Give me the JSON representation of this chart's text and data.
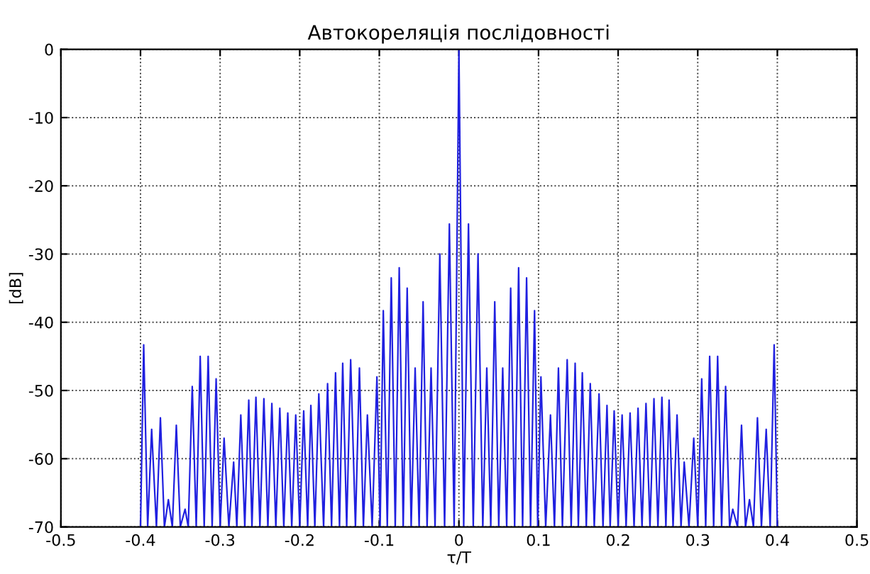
{
  "chart_data": {
    "type": "line",
    "title": "Автокореляція послідовності",
    "xlabel": "τ/T",
    "ylabel": "[dB]",
    "xlim": [
      -0.5,
      0.5
    ],
    "xticks": [
      -0.5,
      -0.4,
      -0.3,
      -0.2,
      -0.1,
      0,
      0.1,
      0.2,
      0.3,
      0.4,
      0.5
    ],
    "ylim": [
      -70,
      0
    ],
    "yticks": [
      -70,
      -60,
      -50,
      -40,
      -30,
      -20,
      -10,
      0
    ],
    "grid": true,
    "marker": "none",
    "line_style": "solid",
    "series": [
      {
        "color": "#2020e0",
        "x": [
          -0.4,
          -0.396,
          -0.391,
          -0.386,
          -0.38,
          -0.375,
          -0.37,
          -0.365,
          -0.36,
          -0.355,
          -0.35,
          -0.344,
          -0.34,
          -0.335,
          -0.33,
          -0.325,
          -0.32,
          -0.315,
          -0.31,
          -0.305,
          -0.3,
          -0.295,
          -0.289,
          -0.283,
          -0.279,
          -0.274,
          -0.269,
          -0.264,
          -0.26,
          -0.255,
          -0.25,
          -0.245,
          -0.24,
          -0.235,
          -0.23,
          -0.225,
          -0.22,
          -0.215,
          -0.21,
          -0.205,
          -0.2,
          -0.195,
          -0.19,
          -0.186,
          -0.181,
          -0.176,
          -0.17,
          -0.165,
          -0.16,
          -0.155,
          -0.15,
          -0.146,
          -0.141,
          -0.136,
          -0.13,
          -0.125,
          -0.12,
          -0.115,
          -0.109,
          -0.103,
          -0.099,
          -0.095,
          -0.09,
          -0.085,
          -0.08,
          -0.075,
          -0.07,
          -0.065,
          -0.06,
          -0.055,
          -0.05,
          -0.045,
          -0.04,
          -0.035,
          -0.03,
          -0.024,
          -0.018,
          -0.012,
          -0.006,
          0,
          0.006,
          0.012,
          0.018,
          0.024,
          0.03,
          0.035,
          0.04,
          0.045,
          0.05,
          0.055,
          0.06,
          0.065,
          0.07,
          0.075,
          0.08,
          0.085,
          0.09,
          0.095,
          0.099,
          0.103,
          0.109,
          0.115,
          0.12,
          0.125,
          0.13,
          0.136,
          0.141,
          0.146,
          0.15,
          0.155,
          0.16,
          0.165,
          0.17,
          0.176,
          0.181,
          0.186,
          0.19,
          0.195,
          0.2,
          0.205,
          0.21,
          0.215,
          0.22,
          0.225,
          0.23,
          0.235,
          0.24,
          0.245,
          0.25,
          0.255,
          0.26,
          0.264,
          0.269,
          0.274,
          0.279,
          0.283,
          0.289,
          0.295,
          0.3,
          0.305,
          0.31,
          0.315,
          0.32,
          0.325,
          0.33,
          0.335,
          0.34,
          0.344,
          0.35,
          0.355,
          0.36,
          0.365,
          0.37,
          0.375,
          0.38,
          0.386,
          0.391,
          0.396,
          0.4
        ],
        "values": [
          -70,
          -43.3,
          -70,
          -55.7,
          -70,
          -54,
          -70,
          -66,
          -70,
          -55.1,
          -70,
          -67.4,
          -70,
          -49.4,
          -70,
          -45,
          -70,
          -45,
          -70,
          -48.3,
          -70,
          -57,
          -70,
          -60.5,
          -70,
          -53.6,
          -70,
          -51.4,
          -70,
          -51,
          -70,
          -51.2,
          -70,
          -51.9,
          -70,
          -52.6,
          -70,
          -53.3,
          -70,
          -53.6,
          -70,
          -53,
          -70,
          -52.2,
          -70,
          -50.5,
          -70,
          -49,
          -70,
          -47.4,
          -70,
          -46,
          -70,
          -45.5,
          -70,
          -46.7,
          -70,
          -53.6,
          -70,
          -48,
          -70,
          -38.3,
          -70,
          -33.5,
          -70,
          -32,
          -70,
          -35,
          -70,
          -46.7,
          -70,
          -37,
          -70,
          -46.7,
          -70,
          -30,
          -70,
          -25.6,
          -70,
          0,
          -70,
          -25.6,
          -70,
          -30,
          -70,
          -46.7,
          -70,
          -37,
          -70,
          -46.7,
          -70,
          -35,
          -70,
          -32,
          -70,
          -33.5,
          -70,
          -38.3,
          -70,
          -48,
          -70,
          -53.6,
          -70,
          -46.7,
          -70,
          -45.5,
          -70,
          -46,
          -70,
          -47.4,
          -70,
          -49,
          -70,
          -50.5,
          -70,
          -52.2,
          -70,
          -53,
          -70,
          -53.6,
          -70,
          -53.3,
          -70,
          -52.6,
          -70,
          -51.9,
          -70,
          -51.2,
          -70,
          -51,
          -70,
          -51.4,
          -70,
          -53.6,
          -70,
          -60.5,
          -70,
          -57,
          -70,
          -48.3,
          -70,
          -45,
          -70,
          -45,
          -70,
          -49.4,
          -70,
          -67.4,
          -70,
          -55.1,
          -70,
          -66,
          -70,
          -54,
          -70,
          -55.7,
          -70,
          -43.3,
          -70
        ]
      }
    ]
  }
}
